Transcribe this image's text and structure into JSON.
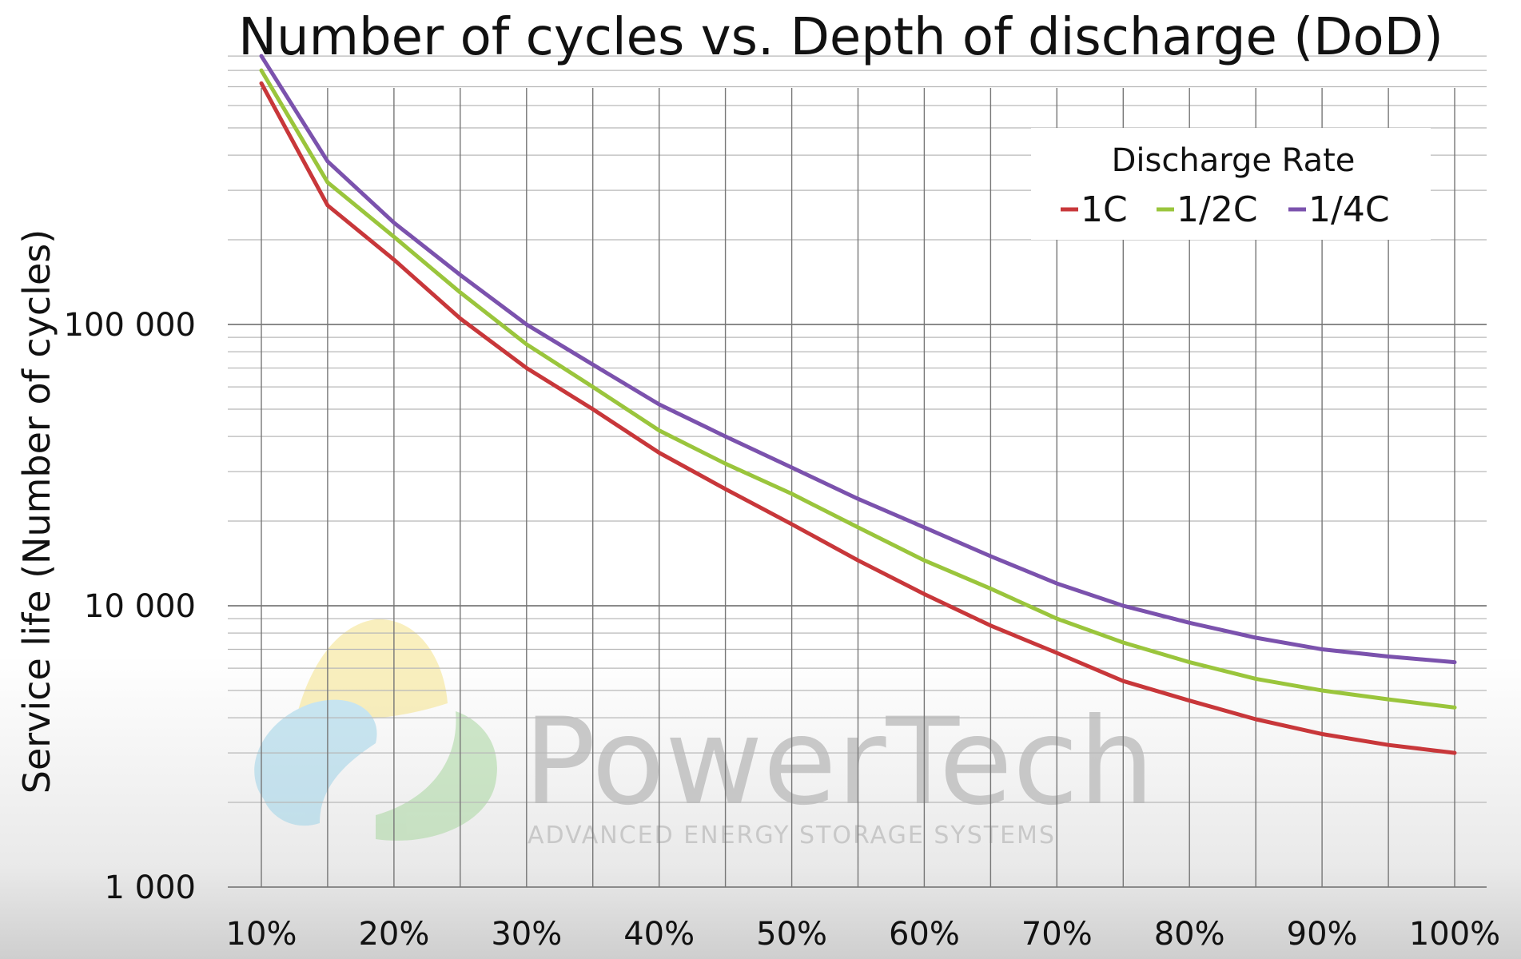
{
  "chart_data": {
    "type": "line",
    "title": "Number of cycles vs. Depth of discharge (DoD)",
    "xlabel": "",
    "ylabel": "Service life (Number of cycles)",
    "x_scale": "linear",
    "y_scale": "log",
    "xlim": [
      10,
      100
    ],
    "ylim": [
      1000,
      900000
    ],
    "grid": true,
    "x": [
      10,
      15,
      20,
      25,
      30,
      35,
      40,
      45,
      50,
      55,
      60,
      65,
      70,
      75,
      80,
      85,
      90,
      95,
      100
    ],
    "x_ticks": [
      10,
      20,
      30,
      40,
      50,
      60,
      70,
      80,
      90,
      100
    ],
    "x_tick_labels": [
      "10%",
      "20%",
      "30%",
      "40%",
      "50%",
      "60%",
      "70%",
      "80%",
      "90%",
      "100%"
    ],
    "y_ticks": [
      1000,
      10000,
      100000
    ],
    "y_tick_labels": [
      "1 000",
      "10 000",
      "100 000"
    ],
    "legend": {
      "title": "Discharge Rate",
      "placement": "top-right",
      "entries": [
        "1C",
        "1/2C",
        "1/4C"
      ]
    },
    "series": [
      {
        "name": "1C",
        "color": "#c8373a",
        "values": [
          720000,
          265000,
          170000,
          105000,
          70000,
          50000,
          35000,
          26000,
          19500,
          14500,
          11000,
          8500,
          6800,
          5400,
          4600,
          3950,
          3500,
          3200,
          3000
        ]
      },
      {
        "name": "1/2C",
        "color": "#9ac53c",
        "values": [
          800000,
          320000,
          205000,
          130000,
          85000,
          60000,
          42000,
          32000,
          25000,
          19000,
          14500,
          11500,
          9000,
          7400,
          6300,
          5500,
          5000,
          4650,
          4350
        ]
      },
      {
        "name": "1/4C",
        "color": "#7b52ad",
        "values": [
          900000,
          380000,
          230000,
          150000,
          100000,
          72000,
          52000,
          40000,
          31000,
          24000,
          19000,
          15000,
          12000,
          10000,
          8700,
          7700,
          7000,
          6600,
          6300
        ]
      }
    ]
  },
  "watermark": {
    "name": "PowerTech",
    "tagline": "ADVANCED ENERGY STORAGE SYSTEMS"
  }
}
